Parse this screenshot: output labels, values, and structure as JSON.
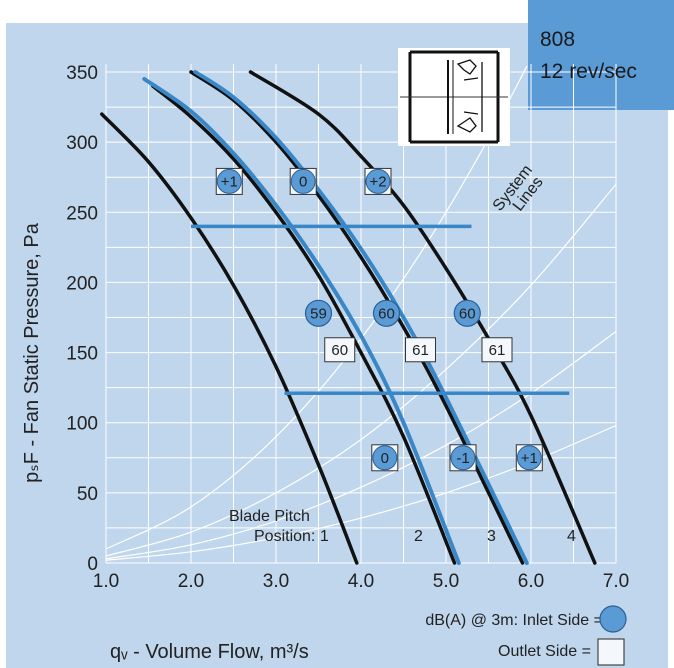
{
  "chart_data": {
    "type": "line",
    "title_line1": "808",
    "title_line2": "12 rev/sec",
    "xlabel": "qᵥ - Volume Flow, m³/s",
    "ylabel": "pₛF - Fan Static Pressure, Pa",
    "xlim": [
      1.0,
      7.0
    ],
    "ylim": [
      0,
      350
    ],
    "x_ticks": [
      "1.0",
      "2.0",
      "3.0",
      "4.0",
      "5.0",
      "6.0",
      "7.0"
    ],
    "y_ticks": [
      "0",
      "50",
      "100",
      "150",
      "200",
      "250",
      "300",
      "350"
    ],
    "grid": true,
    "series": [
      {
        "name": "1",
        "color": "#111111",
        "x": [
          0.95,
          1.5,
          2.0,
          2.5,
          3.0,
          3.5,
          3.95
        ],
        "y": [
          320,
          286,
          246,
          198,
          140,
          70,
          0
        ]
      },
      {
        "name": "2",
        "color": "#111111",
        "x": [
          1.55,
          2.0,
          2.5,
          3.0,
          3.5,
          4.0,
          4.5,
          5.1
        ],
        "y": [
          340,
          318,
          288,
          250,
          205,
          150,
          90,
          0
        ]
      },
      {
        "name": "2-blue",
        "color": "#3a87c8",
        "x": [
          1.45,
          2.0,
          2.5,
          3.0,
          3.5,
          4.0,
          4.5,
          5.15
        ],
        "y": [
          345,
          322,
          292,
          255,
          212,
          162,
          100,
          0
        ]
      },
      {
        "name": "3",
        "color": "#111111",
        "x": [
          2.0,
          2.5,
          3.0,
          3.5,
          4.0,
          4.5,
          5.0,
          5.9
        ],
        "y": [
          350,
          330,
          300,
          262,
          218,
          168,
          112,
          0
        ]
      },
      {
        "name": "3-blue",
        "color": "#3a87c8",
        "x": [
          2.05,
          2.5,
          3.0,
          3.5,
          4.0,
          4.5,
          5.0,
          5.95
        ],
        "y": [
          350,
          332,
          303,
          266,
          224,
          175,
          118,
          0
        ]
      },
      {
        "name": "4",
        "color": "#111111",
        "x": [
          2.7,
          3.5,
          4.0,
          4.5,
          5.0,
          5.5,
          6.0,
          6.75
        ],
        "y": [
          350,
          320,
          290,
          255,
          210,
          160,
          105,
          0
        ]
      }
    ],
    "system_lines": [
      {
        "x": [
          1.0,
          2.0,
          3.0,
          4.0,
          5.0,
          6.0,
          7.0
        ],
        "y": [
          10,
          40,
          90,
          160,
          250,
          360,
          490
        ]
      },
      {
        "x": [
          1.0,
          2.0,
          3.0,
          4.0,
          5.0,
          6.0,
          7.0
        ],
        "y": [
          5,
          22,
          50,
          88,
          138,
          198,
          270
        ]
      },
      {
        "x": [
          1.0,
          2.0,
          3.0,
          4.0,
          5.0,
          6.0,
          7.0
        ],
        "y": [
          3,
          13,
          30,
          54,
          84,
          121,
          165
        ]
      },
      {
        "x": [
          1.0,
          2.0,
          3.0,
          4.0,
          5.0,
          6.0,
          7.0
        ],
        "y": [
          2,
          8,
          18,
          32,
          50,
          72,
          98
        ]
      }
    ],
    "reference_lines": [
      {
        "x": [
          2.0,
          5.3
        ],
        "y": 240,
        "color": "#3a87c8"
      },
      {
        "x": [
          3.1,
          6.45
        ],
        "y": 121,
        "color": "#3a87c8"
      }
    ],
    "pitch_badges": [
      {
        "label": "+1",
        "x": 2.45,
        "y": 272
      },
      {
        "label": "0",
        "x": 3.32,
        "y": 272
      },
      {
        "label": "+2",
        "x": 4.2,
        "y": 272
      },
      {
        "label": "0",
        "x": 4.28,
        "y": 75
      },
      {
        "label": "-1",
        "x": 5.2,
        "y": 75
      },
      {
        "label": "+1",
        "x": 5.98,
        "y": 75
      }
    ],
    "inlet_labels": [
      {
        "label": "59",
        "x": 3.5,
        "y": 178
      },
      {
        "label": "60",
        "x": 4.3,
        "y": 178
      },
      {
        "label": "60",
        "x": 5.25,
        "y": 178
      }
    ],
    "outlet_labels": [
      {
        "label": "60",
        "x": 3.75,
        "y": 152
      },
      {
        "label": "61",
        "x": 4.7,
        "y": 152
      },
      {
        "label": "61",
        "x": 5.6,
        "y": 152
      }
    ],
    "annotations": {
      "system_lines_1": "System",
      "system_lines_2": "Lines",
      "blade_pitch_1": "Blade Pitch",
      "blade_pitch_2": "Position: 1",
      "pos_2": "2",
      "pos_3": "3",
      "pos_4": "4"
    },
    "legend": {
      "line1_prefix": "dB(A) @ 3m:  Inlet Side =",
      "line2_prefix": "Outlet Side ="
    },
    "colors": {
      "background": "#c0d6ec",
      "grid": "#ffffff",
      "title_box": "#5b9bd5",
      "blue_curve": "#3a87c8",
      "black_curve": "#111111"
    }
  }
}
